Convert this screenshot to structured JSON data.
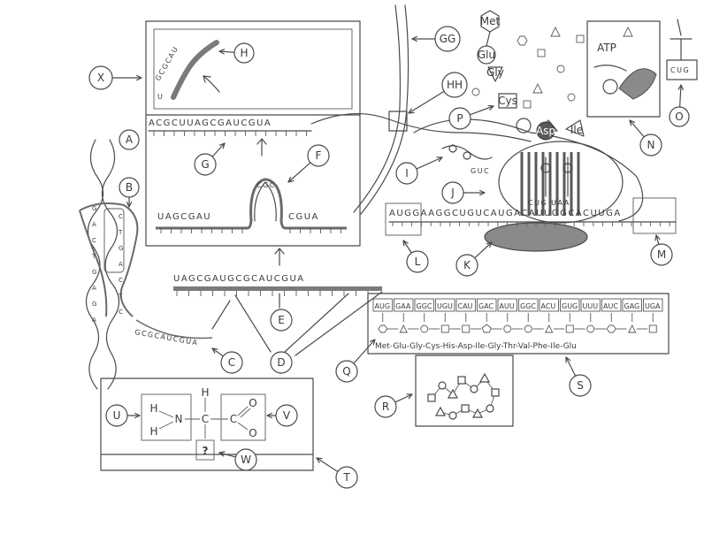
{
  "labels": {
    "x": "X",
    "a": "A",
    "b": "B",
    "c": "C",
    "d": "D",
    "e": "E",
    "f": "F",
    "g": "G",
    "h": "H",
    "i": "I",
    "j": "J",
    "k": "K",
    "l": "L",
    "m": "M",
    "n": "N",
    "o": "O",
    "p": "P",
    "q": "Q",
    "r": "R",
    "s": "S",
    "t": "T",
    "u": "U",
    "v": "V",
    "w": "W",
    "gg": "GG",
    "hh": "HH"
  },
  "sequences": {
    "top_strand": "ACGCUUAGCGAUCGUA",
    "short_rna": "GCGCAU",
    "short_rna_u": "U",
    "loop_left": "UAGCGAU",
    "loop_right": "CGUA",
    "loop_arc": "CGC",
    "middle_strand": "UAGCGAUGCGCAUCGUA",
    "dna_tail": "GCGCAUCGUA",
    "ribosome_strand": "AUGGAAGGCUGUCAUGACAUUGGCACUUGA",
    "ribosome_start": "AUG",
    "ribosome_stop": "UGA",
    "anticodon_j": "CUG UAA",
    "tRNA_o": "CUG",
    "tRNA_i": "GUC"
  },
  "codons": [
    "AUG",
    "GAA",
    "GGC",
    "UGU",
    "CAU",
    "GAC",
    "AUU",
    "GGC",
    "ACU",
    "GUG",
    "UUU",
    "AUC",
    "GAG",
    "UGA"
  ],
  "peptide": "Met-Glu-Gly-Cys-His-Asp-Ile-Gly-Thr-Val-Phe-Ile-Glu",
  "chain_labels": {
    "met": "Met",
    "glu": "Glu",
    "gly": "Gly",
    "cys": "Cys",
    "asp": "Asp",
    "ile": "Ile",
    "atp": "ATP"
  },
  "amino_acid": {
    "h1": "H",
    "h2": "H",
    "n": "N",
    "h_top": "H",
    "c_center": "C",
    "c_acid": "C",
    "o_top": "O",
    "o_bottom": "O",
    "r_group": "?"
  }
}
